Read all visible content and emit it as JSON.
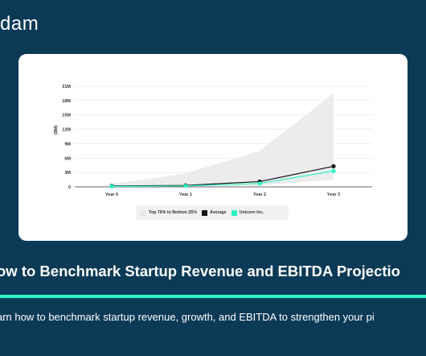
{
  "brand": {
    "name": "dam"
  },
  "page": {
    "title": "ow to Benchmark Startup Revenue and EBITDA Projectio",
    "subtitle": "arn how to benchmark startup revenue, growth, and EBITDA to strengthen your pi"
  },
  "colors": {
    "background": "#0b3a57",
    "accent": "#2cf3c6",
    "average": "#111111",
    "unicorn": "#2cf3c6",
    "range": "#ececec"
  },
  "chart_data": {
    "type": "line",
    "title": "",
    "xlabel": "",
    "ylabel": "($M)",
    "categories": [
      "Year 0",
      "Year 1",
      "Year 2",
      "Year 3"
    ],
    "ylim": [
      0,
      21
    ],
    "yticks": [
      0,
      3,
      6,
      9,
      12,
      15,
      18,
      21
    ],
    "ytick_labels": [
      "0",
      "3M",
      "6M",
      "9M",
      "12M",
      "15M",
      "18M",
      "21M"
    ],
    "band": {
      "name": "Top 75% to Bottom 25%",
      "upper": [
        0.6,
        2.8,
        7.5,
        19.5
      ],
      "lower": [
        0,
        0.1,
        0.3,
        1.5
      ]
    },
    "series": [
      {
        "name": "Average",
        "values": [
          0.2,
          0.3,
          1.1,
          4.3
        ]
      },
      {
        "name": "Unicorn Inc.",
        "values": [
          0.1,
          0.2,
          0.7,
          3.3
        ]
      }
    ],
    "grid": true,
    "legend_position": "bottom"
  }
}
